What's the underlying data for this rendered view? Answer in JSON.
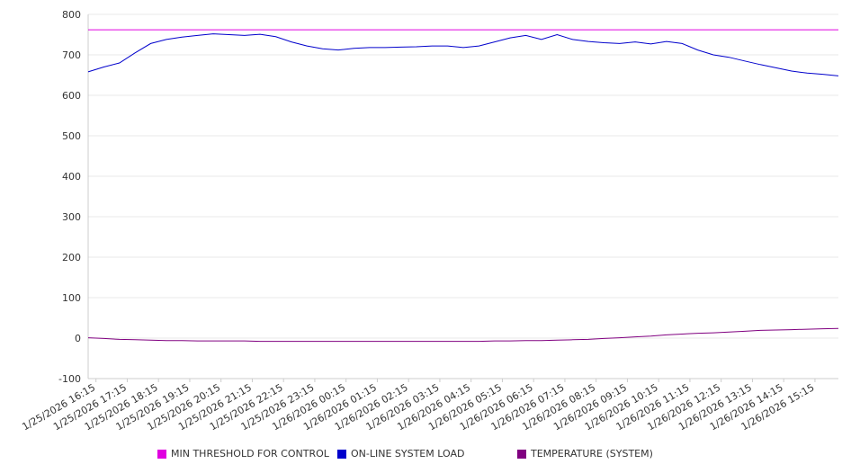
{
  "chart_data": {
    "type": "line",
    "title": "",
    "xlabel": "",
    "ylabel": "",
    "ylim": [
      -100,
      800
    ],
    "y_ticks": [
      800,
      700,
      600,
      500,
      400,
      300,
      200,
      100,
      0,
      -100
    ],
    "x_ticks": [
      "1/25/2026 16:15",
      "1/25/2026 17:15",
      "1/25/2026 18:15",
      "1/25/2026 19:15",
      "1/25/2026 20:15",
      "1/25/2026 21:15",
      "1/25/2026 22:15",
      "1/25/2026 23:15",
      "1/26/2026 00:15",
      "1/26/2026 01:15",
      "1/26/2026 02:15",
      "1/26/2026 03:15",
      "1/26/2026 04:15",
      "1/26/2026 05:15",
      "1/26/2026 06:15",
      "1/26/2026 07:15",
      "1/26/2026 08:15",
      "1/26/2026 09:15",
      "1/26/2026 10:15",
      "1/26/2026 11:15",
      "1/26/2026 12:15",
      "1/26/2026 13:15",
      "1/26/2026 14:15",
      "1/26/2026 15:15"
    ],
    "x": [
      "1/25/2026 16:00",
      "1/25/2026 16:30",
      "1/25/2026 17:00",
      "1/25/2026 17:30",
      "1/25/2026 18:00",
      "1/25/2026 18:30",
      "1/25/2026 19:00",
      "1/25/2026 19:30",
      "1/25/2026 20:00",
      "1/25/2026 20:30",
      "1/25/2026 21:00",
      "1/25/2026 21:30",
      "1/25/2026 22:00",
      "1/25/2026 22:30",
      "1/25/2026 23:00",
      "1/25/2026 23:30",
      "1/26/2026 00:00",
      "1/26/2026 00:30",
      "1/26/2026 01:00",
      "1/26/2026 01:30",
      "1/26/2026 02:00",
      "1/26/2026 02:30",
      "1/26/2026 03:00",
      "1/26/2026 03:30",
      "1/26/2026 04:00",
      "1/26/2026 04:30",
      "1/26/2026 05:00",
      "1/26/2026 05:30",
      "1/26/2026 06:00",
      "1/26/2026 06:30",
      "1/26/2026 07:00",
      "1/26/2026 07:30",
      "1/26/2026 08:00",
      "1/26/2026 08:30",
      "1/26/2026 09:00",
      "1/26/2026 09:30",
      "1/26/2026 10:00",
      "1/26/2026 10:30",
      "1/26/2026 11:00",
      "1/26/2026 11:30",
      "1/26/2026 12:00",
      "1/26/2026 12:30",
      "1/26/2026 13:00",
      "1/26/2026 13:30",
      "1/26/2026 14:00",
      "1/26/2026 14:30",
      "1/26/2026 15:00",
      "1/26/2026 15:30",
      "1/26/2026 16:00"
    ],
    "series": [
      {
        "name": "MIN THRESHOLD FOR CONTROL",
        "color": "#e000e0",
        "values": [
          762,
          762,
          762,
          762,
          762,
          762,
          762,
          762,
          762,
          762,
          762,
          762,
          762,
          762,
          762,
          762,
          762,
          762,
          762,
          762,
          762,
          762,
          762,
          762,
          762,
          762,
          762,
          762,
          762,
          762,
          762,
          762,
          762,
          762,
          762,
          762,
          762,
          762,
          762,
          762,
          762,
          762,
          762,
          762,
          762,
          762,
          762,
          762,
          762
        ]
      },
      {
        "name": "ON-LINE SYSTEM LOAD",
        "color": "#0000cc",
        "values": [
          658,
          670,
          680,
          705,
          728,
          738,
          744,
          748,
          752,
          750,
          748,
          751,
          745,
          732,
          722,
          715,
          712,
          716,
          718,
          718,
          719,
          720,
          722,
          722,
          718,
          722,
          732,
          742,
          748,
          738,
          750,
          738,
          733,
          730,
          728,
          732,
          727,
          733,
          728,
          712,
          700,
          694,
          685,
          676,
          668,
          660,
          655,
          652,
          648
        ]
      },
      {
        "name": "TEMPERATURE (SYSTEM)",
        "color": "#800080",
        "values": [
          1,
          -1,
          -3,
          -4,
          -5,
          -6,
          -6,
          -7,
          -7,
          -7,
          -7,
          -8,
          -8,
          -8,
          -8,
          -8,
          -8,
          -8,
          -8,
          -8,
          -8,
          -8,
          -8,
          -8,
          -8,
          -8,
          -7,
          -7,
          -6,
          -6,
          -5,
          -4,
          -3,
          -1,
          1,
          3,
          5,
          8,
          10,
          12,
          13,
          15,
          17,
          19,
          20,
          21,
          22,
          23,
          24
        ]
      }
    ],
    "legend_position": "bottom",
    "grid": true
  }
}
